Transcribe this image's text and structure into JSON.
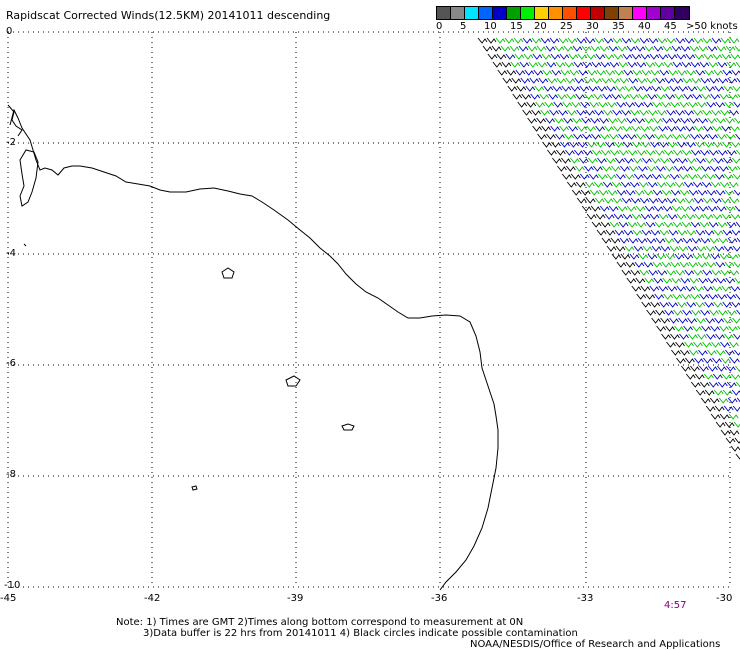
{
  "title": "Rapidscat Corrected Winds(12.5KM) 20141011 descending",
  "legend": {
    "colors": [
      "#555555",
      "#888888",
      "#00e5ff",
      "#0064ff",
      "#0000c8",
      "#00a000",
      "#00f000",
      "#ffd000",
      "#ff9000",
      "#ff5000",
      "#ff0000",
      "#c00000",
      "#804000",
      "#c08050",
      "#ff00ff",
      "#a000d0",
      "#6000a0",
      "#300060"
    ],
    "labels": [
      "0",
      "5",
      "10",
      "15",
      "20",
      "25",
      "30",
      "35",
      "40",
      "45",
      ">50 knots"
    ]
  },
  "axes": {
    "y_labels": [
      "0",
      "-2",
      "-4",
      "-6",
      "-8",
      "-10"
    ],
    "x_labels": [
      "-45",
      "-42",
      "-39",
      "-36",
      "-33",
      "-30"
    ]
  },
  "time_label": "4:57",
  "notes": {
    "line1": "Note: 1) Times are GMT 2)Times along bottom correspond to measurement at 0N",
    "line2": "3)Data buffer is 22 hrs from 20141011 4) Black circles indicate possible contamination",
    "line3": "NOAA/NESDIS/Office of Research and Applications"
  }
}
